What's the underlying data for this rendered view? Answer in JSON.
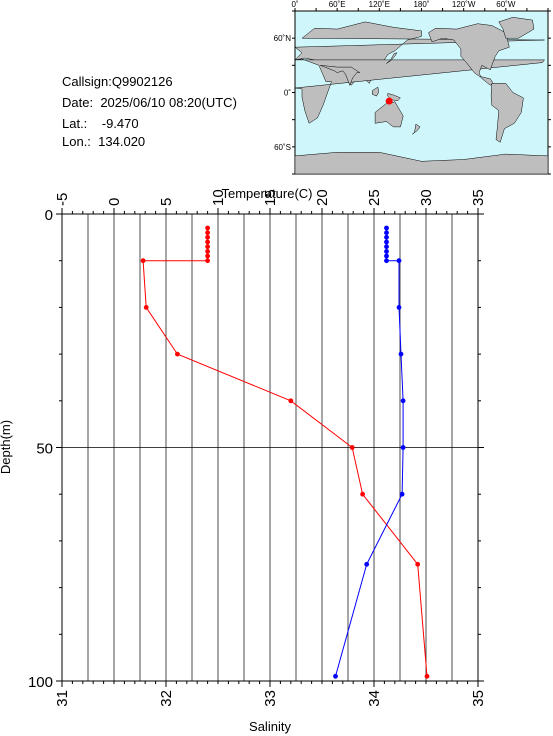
{
  "station": {
    "callsign_label": "Callsign:",
    "callsign": "Q9902126",
    "date_label": "Date:",
    "date": "2025/06/10 08:20(UTC)",
    "lat_label": "Lat.:",
    "lat": "-9.470",
    "lon_label": "Lon.:",
    "lon": "134.020"
  },
  "map": {
    "top_labels": [
      "0˚",
      "60˚E",
      "120˚E",
      "180˚",
      "120˚W",
      "60˚W"
    ],
    "left_labels": [
      "60˚N",
      "0˚",
      "60˚S"
    ],
    "ocean_color": "#cff7fb",
    "land_color": "#bebebe",
    "marker_color": "#ff0000",
    "marker_lon": 134.02,
    "marker_lat": -9.47
  },
  "chart_data": {
    "type": "line",
    "xlabel_top": "Temperature(C)",
    "xlabel_bottom": "Salinity",
    "ylabel": "Depth(m)",
    "temperature_range": [
      -5,
      35
    ],
    "salinity_range": [
      31,
      35
    ],
    "depth_range": [
      0,
      100
    ],
    "temperature_ticks": [
      "-5",
      "0",
      "5",
      "10",
      "15",
      "20",
      "25",
      "30",
      "35"
    ],
    "salinity_ticks": [
      "31",
      "32",
      "33",
      "34",
      "35"
    ],
    "depth_ticks": [
      "0",
      "50",
      "100"
    ],
    "grid": true,
    "series": [
      {
        "quantity": "temperature",
        "color": "#ff0000",
        "points": [
          {
            "depth": 3,
            "value": 9.0
          },
          {
            "depth": 4,
            "value": 9.0
          },
          {
            "depth": 5,
            "value": 9.0
          },
          {
            "depth": 6,
            "value": 9.0
          },
          {
            "depth": 7,
            "value": 9.0
          },
          {
            "depth": 8,
            "value": 9.0
          },
          {
            "depth": 9,
            "value": 9.0
          },
          {
            "depth": 10,
            "value": 9.0
          },
          {
            "depth": 10,
            "value": 2.8
          },
          {
            "depth": 20,
            "value": 3.1
          },
          {
            "depth": 30,
            "value": 6.1
          },
          {
            "depth": 40,
            "value": 17.0
          },
          {
            "depth": 50,
            "value": 22.9
          },
          {
            "depth": 60,
            "value": 23.9
          },
          {
            "depth": 75,
            "value": 29.2
          },
          {
            "depth": 99,
            "value": 30.1
          }
        ]
      },
      {
        "quantity": "salinity",
        "color": "#0000ff",
        "points": [
          {
            "depth": 3,
            "value": 34.12
          },
          {
            "depth": 4,
            "value": 34.12
          },
          {
            "depth": 5,
            "value": 34.12
          },
          {
            "depth": 6,
            "value": 34.12
          },
          {
            "depth": 7,
            "value": 34.12
          },
          {
            "depth": 8,
            "value": 34.12
          },
          {
            "depth": 9,
            "value": 34.12
          },
          {
            "depth": 10,
            "value": 34.12
          },
          {
            "depth": 10,
            "value": 34.24
          },
          {
            "depth": 20,
            "value": 34.24
          },
          {
            "depth": 30,
            "value": 34.26
          },
          {
            "depth": 40,
            "value": 34.28
          },
          {
            "depth": 50,
            "value": 34.28
          },
          {
            "depth": 60,
            "value": 34.27
          },
          {
            "depth": 75,
            "value": 33.93
          },
          {
            "depth": 99,
            "value": 33.63
          }
        ]
      }
    ]
  }
}
